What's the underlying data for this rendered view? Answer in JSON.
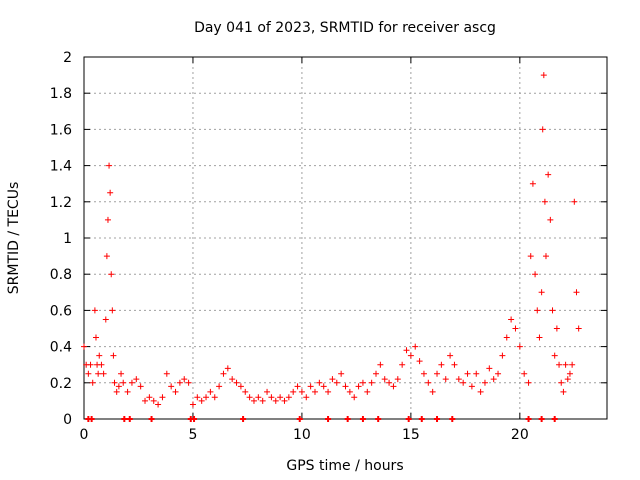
{
  "chart_data": {
    "type": "scatter",
    "title": "Day 041 of 2023, SRMTID for receiver ascg",
    "xlabel": "GPS time / hours",
    "ylabel": "SRMTID / TECUs",
    "xlim": [
      0,
      24
    ],
    "ylim": [
      0,
      2
    ],
    "xticks": [
      0,
      5,
      10,
      15,
      20
    ],
    "xtick_labels": [
      "0",
      "5",
      "10",
      "15",
      "20"
    ],
    "yticks": [
      0,
      0.2,
      0.4,
      0.6,
      0.8,
      1,
      1.2,
      1.4,
      1.6,
      1.8,
      2
    ],
    "ytick_labels": [
      "0",
      "0.2",
      "0.4",
      "0.6",
      "0.8",
      "1",
      "1.2",
      "1.4",
      "1.6",
      "1.8",
      "2"
    ],
    "grid": true,
    "marker": "+",
    "color": "#ff0000",
    "series": [
      {
        "name": "SRMTID",
        "x": [
          0.0,
          0.1,
          0.2,
          0.3,
          0.4,
          0.5,
          0.55,
          0.6,
          0.65,
          0.7,
          0.8,
          0.9,
          1.0,
          1.05,
          1.1,
          1.15,
          1.2,
          1.25,
          1.3,
          1.35,
          1.4,
          1.5,
          1.6,
          1.7,
          1.8,
          2.0,
          2.2,
          2.4,
          2.6,
          2.8,
          3.0,
          3.2,
          3.4,
          3.6,
          3.8,
          4.0,
          4.2,
          4.4,
          4.6,
          4.8,
          5.0,
          5.2,
          5.4,
          5.6,
          5.8,
          6.0,
          6.2,
          6.4,
          6.6,
          6.8,
          7.0,
          7.2,
          7.4,
          7.6,
          7.8,
          8.0,
          8.2,
          8.4,
          8.6,
          8.8,
          9.0,
          9.2,
          9.4,
          9.6,
          9.8,
          10.0,
          10.2,
          10.4,
          10.6,
          10.8,
          11.0,
          11.2,
          11.4,
          11.6,
          11.8,
          12.0,
          12.2,
          12.4,
          12.6,
          12.8,
          13.0,
          13.2,
          13.4,
          13.6,
          13.8,
          14.0,
          14.2,
          14.4,
          14.6,
          14.8,
          15.0,
          15.2,
          15.4,
          15.6,
          15.8,
          16.0,
          16.2,
          16.4,
          16.6,
          16.8,
          17.0,
          17.2,
          17.4,
          17.6,
          17.8,
          18.0,
          18.2,
          18.4,
          18.6,
          18.8,
          19.0,
          19.2,
          19.4,
          19.6,
          19.8,
          20.0,
          20.2,
          20.4,
          20.5,
          20.6,
          20.7,
          20.8,
          20.9,
          21.0,
          21.05,
          21.1,
          21.15,
          21.2,
          21.3,
          21.4,
          21.5,
          21.6,
          21.7,
          21.8,
          21.9,
          22.0,
          22.1,
          22.2,
          22.3,
          22.4,
          22.5,
          22.6,
          22.7
        ],
        "y": [
          0.4,
          0.3,
          0.25,
          0.3,
          0.2,
          0.6,
          0.45,
          0.3,
          0.25,
          0.35,
          0.3,
          0.25,
          0.55,
          0.9,
          1.1,
          1.4,
          1.25,
          0.8,
          0.6,
          0.35,
          0.2,
          0.15,
          0.18,
          0.25,
          0.2,
          0.15,
          0.2,
          0.22,
          0.18,
          0.1,
          0.12,
          0.1,
          0.08,
          0.12,
          0.25,
          0.18,
          0.15,
          0.2,
          0.22,
          0.2,
          0.08,
          0.12,
          0.1,
          0.12,
          0.15,
          0.12,
          0.18,
          0.25,
          0.28,
          0.22,
          0.2,
          0.18,
          0.15,
          0.12,
          0.1,
          0.12,
          0.1,
          0.15,
          0.12,
          0.1,
          0.12,
          0.1,
          0.12,
          0.15,
          0.18,
          0.15,
          0.12,
          0.18,
          0.15,
          0.2,
          0.18,
          0.15,
          0.22,
          0.2,
          0.25,
          0.18,
          0.15,
          0.12,
          0.18,
          0.2,
          0.15,
          0.2,
          0.25,
          0.3,
          0.22,
          0.2,
          0.18,
          0.22,
          0.3,
          0.38,
          0.35,
          0.4,
          0.32,
          0.25,
          0.2,
          0.15,
          0.25,
          0.3,
          0.22,
          0.35,
          0.3,
          0.22,
          0.2,
          0.25,
          0.18,
          0.25,
          0.15,
          0.2,
          0.28,
          0.22,
          0.25,
          0.35,
          0.45,
          0.55,
          0.5,
          0.4,
          0.25,
          0.2,
          0.9,
          1.3,
          0.8,
          0.6,
          0.45,
          0.7,
          1.6,
          1.9,
          1.2,
          0.9,
          1.35,
          1.1,
          0.6,
          0.35,
          0.5,
          0.3,
          0.2,
          0.15,
          0.3,
          0.22,
          0.25,
          0.3,
          1.2,
          0.7,
          0.5
        ]
      }
    ],
    "gap_markers_x": [
      0.2,
      0.35,
      1.85,
      2.1,
      3.1,
      4.9,
      5.05,
      7.3,
      9.9,
      11.2,
      12.1,
      12.8,
      13.5,
      14.9,
      15.5,
      16.2,
      16.9,
      20.4,
      21.0,
      21.6
    ]
  }
}
